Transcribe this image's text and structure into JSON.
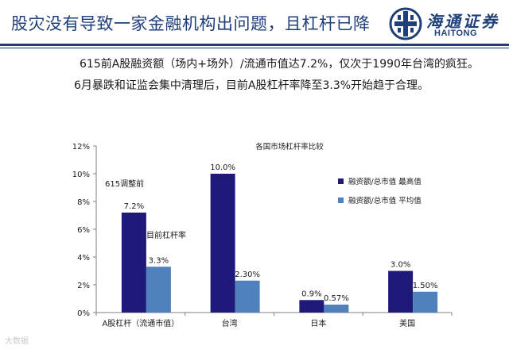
{
  "header": {
    "title": "股灾没有导致一家金融机构出问题，且杠杆已降",
    "logo_cn": "海通证券",
    "logo_en": "HAITONG"
  },
  "summary": {
    "line1": "615前A股融资额（场内+场外）/流通市值达7.2%，仅次于1990年台湾的疯狂。",
    "line2": "6月暴跌和证监会集中清理后，目前A股杠杆率降至3.3%开始趋于合理。"
  },
  "chart_data": {
    "type": "bar",
    "title": "各国市场杠杆率比较",
    "categories": [
      "A股杠杆（流通市值）",
      "台湾",
      "日本",
      "美国"
    ],
    "series": [
      {
        "name": "融资额/总市值  最高值",
        "values": [
          7.2,
          10.0,
          0.9,
          3.0
        ],
        "labels": [
          "7.2%",
          "10.0%",
          "0.9%",
          "3.0%"
        ],
        "color": "#1f1a7a"
      },
      {
        "name": "融资额/总市值  平均值",
        "values": [
          3.3,
          2.3,
          0.57,
          1.5
        ],
        "labels": [
          "3.3%",
          "2.30%",
          "0.57%",
          "1.50%"
        ],
        "color": "#4f81bd"
      }
    ],
    "ylim": [
      0,
      12
    ],
    "yticks": [
      0,
      2,
      4,
      6,
      8,
      10,
      12
    ],
    "ytick_labels": [
      "0%",
      "2%",
      "4%",
      "6%",
      "8%",
      "10%",
      "12%"
    ],
    "legend_position": "right",
    "grid": false,
    "annotations": {
      "before": "615调整前",
      "current": "目前杠杆率"
    }
  },
  "watermark": "大数据"
}
